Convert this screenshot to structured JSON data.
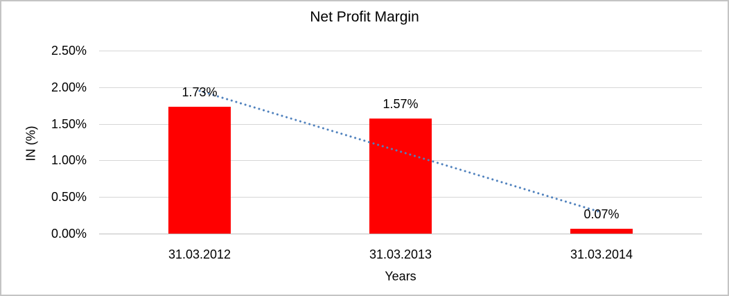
{
  "chart_data": {
    "type": "bar",
    "title": "Net Profit Margin",
    "xlabel": "Years",
    "ylabel": "IN (%)",
    "categories": [
      "31.03.2012",
      "31.03.2013",
      "31.03.2014"
    ],
    "values": [
      1.73,
      1.57,
      0.07
    ],
    "data_labels": [
      "1.73%",
      "1.57%",
      "0.07%"
    ],
    "ylim": [
      0,
      2.5
    ],
    "y_ticks": [
      "2.50%",
      "2.00%",
      "1.50%",
      "1.00%",
      "0.50%",
      "0.00%"
    ],
    "grid": true,
    "legend": "none",
    "bar_color": "#FF0000",
    "gridline_color": "#D6D6D6",
    "axis_line_color": "#BFBFBF",
    "text_color": "#000000",
    "trendline": {
      "type": "linear",
      "style": "dotted",
      "color": "#4F81BD",
      "start_value": 1.95,
      "end_value": 0.29
    }
  }
}
